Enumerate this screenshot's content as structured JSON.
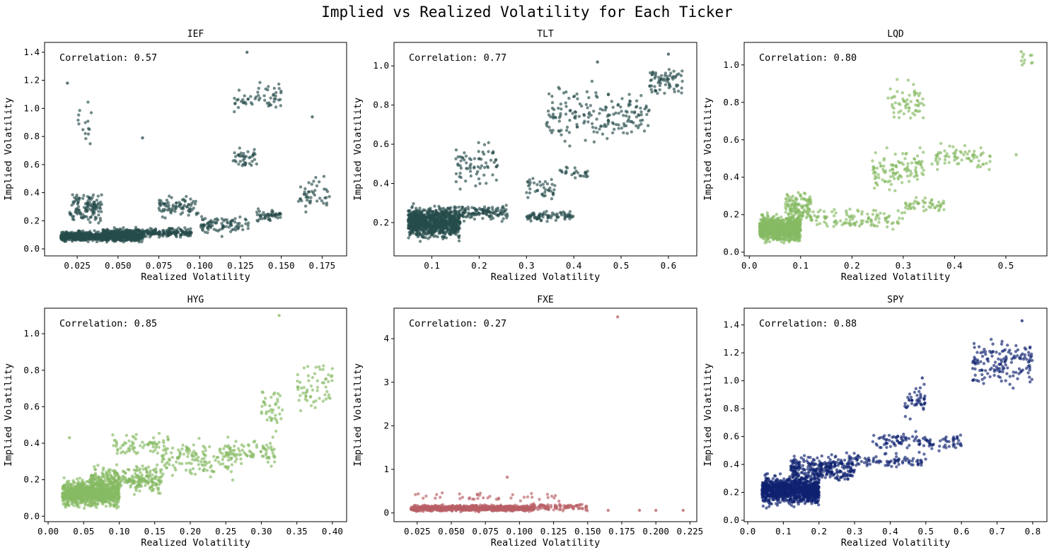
{
  "figure": {
    "title": "Implied vs Realized Volatility for Each Ticker"
  },
  "chart_data": [
    {
      "type": "scatter",
      "title": "IEF",
      "xlabel": "Realized Volatility",
      "ylabel": "Implied Volatility",
      "annotation": "Correlation: 0.57",
      "color": "#264b4c",
      "xlim": [
        0.005,
        0.19
      ],
      "ylim": [
        -0.05,
        1.47
      ],
      "xticks": [
        0.025,
        0.05,
        0.075,
        0.1,
        0.125,
        0.15,
        0.175
      ],
      "xtick_labels": [
        "0.025",
        "0.050",
        "0.075",
        "0.100",
        "0.125",
        "0.150",
        "0.175"
      ],
      "yticks": [
        0,
        0.2,
        0.4,
        0.6,
        0.8,
        1.0,
        1.2,
        1.4
      ],
      "ytick_labels": [
        "0.0",
        "0.2",
        "0.4",
        "0.6",
        "0.8",
        "1.0",
        "1.2",
        "1.4"
      ],
      "clusters": [
        {
          "x": [
            0.015,
            0.065
          ],
          "y": [
            0.04,
            0.14
          ],
          "n": 900
        },
        {
          "x": [
            0.04,
            0.095
          ],
          "y": [
            0.07,
            0.16
          ],
          "n": 300
        },
        {
          "x": [
            0.02,
            0.04
          ],
          "y": [
            0.15,
            0.45
          ],
          "n": 120
        },
        {
          "x": [
            0.075,
            0.1
          ],
          "y": [
            0.2,
            0.4
          ],
          "n": 80
        },
        {
          "x": [
            0.1,
            0.13
          ],
          "y": [
            0.08,
            0.25
          ],
          "n": 90
        },
        {
          "x": [
            0.12,
            0.135
          ],
          "y": [
            0.55,
            0.75
          ],
          "n": 40
        },
        {
          "x": [
            0.12,
            0.15
          ],
          "y": [
            0.95,
            1.2
          ],
          "n": 55
        },
        {
          "x": [
            0.135,
            0.15
          ],
          "y": [
            0.18,
            0.3
          ],
          "n": 50
        },
        {
          "x": [
            0.16,
            0.18
          ],
          "y": [
            0.25,
            0.55
          ],
          "n": 45
        },
        {
          "x": [
            0.025,
            0.035
          ],
          "y": [
            0.7,
            1.1
          ],
          "n": 15
        }
      ],
      "points": [
        [
          0.129,
          1.4
        ],
        [
          0.169,
          0.94
        ],
        [
          0.019,
          1.18
        ],
        [
          0.065,
          0.79
        ]
      ]
    },
    {
      "type": "scatter",
      "title": "TLT",
      "xlabel": "Realized Volatility",
      "ylabel": "Implied Volatility",
      "annotation": "Correlation: 0.77",
      "color": "#264b4c",
      "xlim": [
        0.02,
        0.66
      ],
      "ylim": [
        0.03,
        1.12
      ],
      "xticks": [
        0.1,
        0.2,
        0.3,
        0.4,
        0.5,
        0.6
      ],
      "xtick_labels": [
        "0.1",
        "0.2",
        "0.3",
        "0.4",
        "0.5",
        "0.6"
      ],
      "yticks": [
        0.2,
        0.4,
        0.6,
        0.8,
        1.0
      ],
      "ytick_labels": [
        "0.2",
        "0.4",
        "0.6",
        "0.8",
        "1.0"
      ],
      "clusters": [
        {
          "x": [
            0.05,
            0.16
          ],
          "y": [
            0.1,
            0.3
          ],
          "n": 1000
        },
        {
          "x": [
            0.16,
            0.26
          ],
          "y": [
            0.2,
            0.3
          ],
          "n": 120
        },
        {
          "x": [
            0.15,
            0.24
          ],
          "y": [
            0.35,
            0.65
          ],
          "n": 70
        },
        {
          "x": [
            0.3,
            0.4
          ],
          "y": [
            0.2,
            0.27
          ],
          "n": 80
        },
        {
          "x": [
            0.3,
            0.36
          ],
          "y": [
            0.3,
            0.45
          ],
          "n": 40
        },
        {
          "x": [
            0.34,
            0.45
          ],
          "y": [
            0.55,
            0.95
          ],
          "n": 90
        },
        {
          "x": [
            0.45,
            0.56
          ],
          "y": [
            0.6,
            0.9
          ],
          "n": 90
        },
        {
          "x": [
            0.56,
            0.63
          ],
          "y": [
            0.82,
            1.05
          ],
          "n": 70
        },
        {
          "x": [
            0.37,
            0.43
          ],
          "y": [
            0.4,
            0.5
          ],
          "n": 25
        }
      ],
      "points": [
        [
          0.6,
          1.06
        ],
        [
          0.45,
          1.02
        ]
      ]
    },
    {
      "type": "scatter",
      "title": "LQD",
      "xlabel": "Realized Volatility",
      "ylabel": "Implied Volatility",
      "annotation": "Correlation: 0.80",
      "color": "#86ba62",
      "xlim": [
        -0.01,
        0.58
      ],
      "ylim": [
        -0.02,
        1.12
      ],
      "xticks": [
        0.0,
        0.1,
        0.2,
        0.3,
        0.4,
        0.5
      ],
      "xtick_labels": [
        "0.0",
        "0.1",
        "0.2",
        "0.3",
        "0.4",
        "0.5"
      ],
      "yticks": [
        0.0,
        0.2,
        0.4,
        0.6,
        0.8,
        1.0
      ],
      "ytick_labels": [
        "0.0",
        "0.2",
        "0.4",
        "0.6",
        "0.8",
        "1.0"
      ],
      "clusters": [
        {
          "x": [
            0.02,
            0.1
          ],
          "y": [
            0.03,
            0.22
          ],
          "n": 900
        },
        {
          "x": [
            0.07,
            0.12
          ],
          "y": [
            0.15,
            0.35
          ],
          "n": 120
        },
        {
          "x": [
            0.1,
            0.3
          ],
          "y": [
            0.1,
            0.25
          ],
          "n": 120
        },
        {
          "x": [
            0.24,
            0.34
          ],
          "y": [
            0.3,
            0.6
          ],
          "n": 110
        },
        {
          "x": [
            0.27,
            0.34
          ],
          "y": [
            0.65,
            0.95
          ],
          "n": 60
        },
        {
          "x": [
            0.3,
            0.38
          ],
          "y": [
            0.2,
            0.3
          ],
          "n": 50
        },
        {
          "x": [
            0.35,
            0.47
          ],
          "y": [
            0.42,
            0.6
          ],
          "n": 70
        },
        {
          "x": [
            0.53,
            0.56
          ],
          "y": [
            0.98,
            1.07
          ],
          "n": 10
        }
      ],
      "points": [
        [
          0.53,
          1.07
        ],
        [
          0.52,
          0.52
        ]
      ]
    },
    {
      "type": "scatter",
      "title": "HYG",
      "xlabel": "Realized Volatility",
      "ylabel": "Implied Volatility",
      "annotation": "Correlation: 0.85",
      "color": "#86ba62",
      "xlim": [
        -0.005,
        0.42
      ],
      "ylim": [
        -0.03,
        1.14
      ],
      "xticks": [
        0.0,
        0.05,
        0.1,
        0.15,
        0.2,
        0.25,
        0.3,
        0.35,
        0.4
      ],
      "xtick_labels": [
        "0.00",
        "0.05",
        "0.10",
        "0.15",
        "0.20",
        "0.25",
        "0.30",
        "0.35",
        "0.40"
      ],
      "yticks": [
        0.0,
        0.2,
        0.4,
        0.6,
        0.8,
        1.0
      ],
      "ytick_labels": [
        "0.0",
        "0.2",
        "0.4",
        "0.6",
        "0.8",
        "1.0"
      ],
      "clusters": [
        {
          "x": [
            0.02,
            0.1
          ],
          "y": [
            0.03,
            0.22
          ],
          "n": 900
        },
        {
          "x": [
            0.06,
            0.16
          ],
          "y": [
            0.1,
            0.3
          ],
          "n": 300
        },
        {
          "x": [
            0.09,
            0.17
          ],
          "y": [
            0.3,
            0.48
          ],
          "n": 70
        },
        {
          "x": [
            0.16,
            0.26
          ],
          "y": [
            0.18,
            0.45
          ],
          "n": 140
        },
        {
          "x": [
            0.25,
            0.32
          ],
          "y": [
            0.25,
            0.45
          ],
          "n": 80
        },
        {
          "x": [
            0.3,
            0.33
          ],
          "y": [
            0.45,
            0.75
          ],
          "n": 40
        },
        {
          "x": [
            0.35,
            0.4
          ],
          "y": [
            0.5,
            0.9
          ],
          "n": 60
        }
      ],
      "points": [
        [
          0.325,
          1.1
        ],
        [
          0.03,
          0.43
        ]
      ]
    },
    {
      "type": "scatter",
      "title": "FXE",
      "xlabel": "Realized Volatility",
      "ylabel": "Implied Volatility",
      "annotation": "Correlation: 0.27",
      "color": "#b95f66",
      "xlim": [
        0.008,
        0.23
      ],
      "ylim": [
        -0.2,
        4.7
      ],
      "xticks": [
        0.025,
        0.05,
        0.075,
        0.1,
        0.125,
        0.15,
        0.175,
        0.2,
        0.225
      ],
      "xtick_labels": [
        "0.025",
        "0.050",
        "0.075",
        "0.100",
        "0.125",
        "0.150",
        "0.175",
        "0.200",
        "0.225"
      ],
      "yticks": [
        0,
        1,
        2,
        3,
        4
      ],
      "ytick_labels": [
        "0",
        "1",
        "2",
        "3",
        "4"
      ],
      "clusters": [
        {
          "x": [
            0.02,
            0.11
          ],
          "y": [
            0.02,
            0.2
          ],
          "n": 900
        },
        {
          "x": [
            0.11,
            0.15
          ],
          "y": [
            0.03,
            0.25
          ],
          "n": 90
        },
        {
          "x": [
            0.02,
            0.13
          ],
          "y": [
            0.2,
            0.5
          ],
          "n": 40
        }
      ],
      "points": [
        [
          0.172,
          4.5
        ],
        [
          0.091,
          0.82
        ],
        [
          0.165,
          0.06
        ],
        [
          0.188,
          0.06
        ],
        [
          0.2,
          0.06
        ],
        [
          0.22,
          0.06
        ]
      ]
    },
    {
      "type": "scatter",
      "title": "SPY",
      "xlabel": "Realized Volatility",
      "ylabel": "Implied Volatility",
      "annotation": "Correlation: 0.88",
      "color": "#102270",
      "xlim": [
        -0.01,
        0.84
      ],
      "ylim": [
        -0.01,
        1.52
      ],
      "xticks": [
        0.0,
        0.1,
        0.2,
        0.3,
        0.4,
        0.5,
        0.6,
        0.7,
        0.8
      ],
      "xtick_labels": [
        "0.0",
        "0.1",
        "0.2",
        "0.3",
        "0.4",
        "0.5",
        "0.6",
        "0.7",
        "0.8"
      ],
      "yticks": [
        0.0,
        0.2,
        0.4,
        0.6,
        0.8,
        1.0,
        1.2,
        1.4
      ],
      "ytick_labels": [
        "0.0",
        "0.2",
        "0.4",
        "0.6",
        "0.8",
        "1.0",
        "1.2",
        "1.4"
      ],
      "clusters": [
        {
          "x": [
            0.04,
            0.2
          ],
          "y": [
            0.08,
            0.35
          ],
          "n": 1100
        },
        {
          "x": [
            0.12,
            0.3
          ],
          "y": [
            0.25,
            0.5
          ],
          "n": 300
        },
        {
          "x": [
            0.3,
            0.5
          ],
          "y": [
            0.35,
            0.5
          ],
          "n": 80
        },
        {
          "x": [
            0.35,
            0.6
          ],
          "y": [
            0.48,
            0.65
          ],
          "n": 110
        },
        {
          "x": [
            0.44,
            0.5
          ],
          "y": [
            0.7,
            1.0
          ],
          "n": 45
        },
        {
          "x": [
            0.63,
            0.8
          ],
          "y": [
            0.9,
            1.35
          ],
          "n": 150
        }
      ],
      "points": [
        [
          0.77,
          1.43
        ],
        [
          0.49,
          1.02
        ]
      ]
    }
  ]
}
